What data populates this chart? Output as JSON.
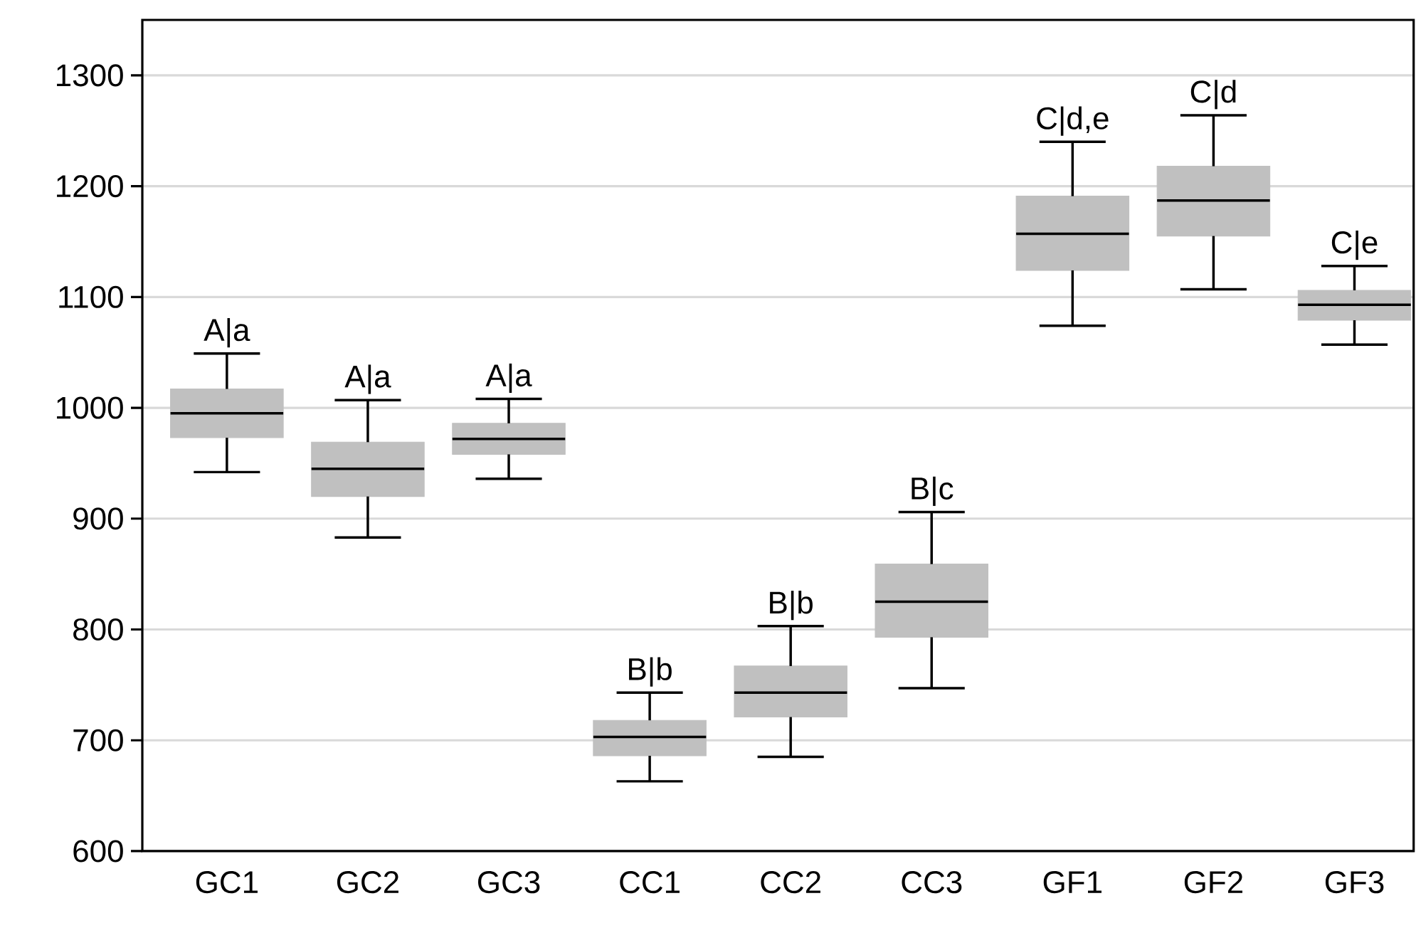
{
  "chart_data": {
    "type": "box",
    "categories": [
      "GC1",
      "GC2",
      "GC3",
      "CC1",
      "CC2",
      "CC3",
      "GF1",
      "GF2",
      "GF3"
    ],
    "color": "#c0c0c0",
    "boxes": [
      {
        "low": 942,
        "q1": 973,
        "median": 995,
        "q3": 1017,
        "high": 1049
      },
      {
        "low": 883,
        "q1": 920,
        "median": 945,
        "q3": 969,
        "high": 1007
      },
      {
        "low": 936,
        "q1": 958,
        "median": 972,
        "q3": 986,
        "high": 1008
      },
      {
        "low": 663,
        "q1": 686,
        "median": 703,
        "q3": 718,
        "high": 743
      },
      {
        "low": 685,
        "q1": 721,
        "median": 743,
        "q3": 767,
        "high": 803
      },
      {
        "low": 747,
        "q1": 793,
        "median": 825,
        "q3": 859,
        "high": 906
      },
      {
        "low": 1074,
        "q1": 1124,
        "median": 1157,
        "q3": 1191,
        "high": 1240
      },
      {
        "low": 1107,
        "q1": 1155,
        "median": 1187,
        "q3": 1218,
        "high": 1264
      },
      {
        "low": 1057,
        "q1": 1079,
        "median": 1093,
        "q3": 1106,
        "high": 1128
      }
    ],
    "ylim": [
      600,
      1350
    ],
    "yticks": [
      600,
      700,
      800,
      900,
      1000,
      1100,
      1200,
      1300
    ],
    "grid": "y",
    "annotations": [
      {
        "text": "A|a",
        "x": "GC1",
        "y": 1049
      },
      {
        "text": "A|a",
        "x": "GC2",
        "y": 1007
      },
      {
        "text": "A|a",
        "x": "GC3",
        "y": 1008
      },
      {
        "text": "B|b",
        "x": "CC1",
        "y": 743
      },
      {
        "text": "B|b",
        "x": "CC2",
        "y": 803
      },
      {
        "text": "B|c",
        "x": "CC3",
        "y": 906
      },
      {
        "text": "C|d,e",
        "x": "GF1",
        "y": 1240
      },
      {
        "text": "C|d",
        "x": "GF2",
        "y": 1264
      },
      {
        "text": "C|e",
        "x": "GF3",
        "y": 1128
      }
    ]
  }
}
